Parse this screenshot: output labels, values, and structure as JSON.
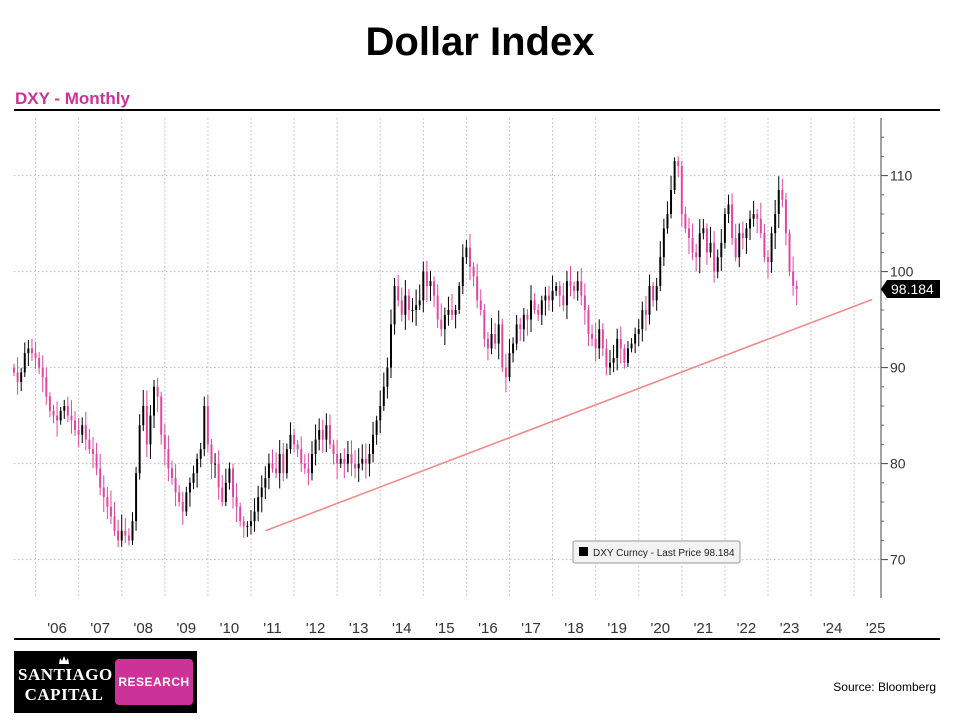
{
  "header": {
    "title": "Dollar Index",
    "subtitle": "DXY - Monthly"
  },
  "footer": {
    "source": "Source:  Bloomberg",
    "logo": {
      "line1": "SANTIAGO",
      "line2": "CAPITAL",
      "badge": "RESEARCH"
    }
  },
  "colors": {
    "accent": "#cc3399",
    "up_candle": "#000000",
    "down_candle": "#e0469f",
    "trendline": "#f08a8a",
    "grid": "#bbbbbb"
  },
  "chart_data": {
    "type": "candlestick",
    "frequency": "monthly",
    "title": "Dollar Index",
    "subtitle": "DXY - Monthly",
    "x_range": [
      2005.5,
      2025.6
    ],
    "ylim": [
      66,
      116
    ],
    "y_ticks": [
      70,
      80,
      90,
      100,
      110
    ],
    "x_ticks": [
      {
        "year": 2006,
        "label": "'06"
      },
      {
        "year": 2007,
        "label": "'07"
      },
      {
        "year": 2008,
        "label": "'08"
      },
      {
        "year": 2009,
        "label": "'09"
      },
      {
        "year": 2010,
        "label": "'10"
      },
      {
        "year": 2011,
        "label": "'11"
      },
      {
        "year": 2012,
        "label": "'12"
      },
      {
        "year": 2013,
        "label": "'13"
      },
      {
        "year": 2014,
        "label": "'14"
      },
      {
        "year": 2015,
        "label": "'15"
      },
      {
        "year": 2016,
        "label": "'16"
      },
      {
        "year": 2017,
        "label": "'17"
      },
      {
        "year": 2018,
        "label": "'18"
      },
      {
        "year": 2019,
        "label": "'19"
      },
      {
        "year": 2020,
        "label": "'20"
      },
      {
        "year": 2021,
        "label": "'21"
      },
      {
        "year": 2022,
        "label": "'22"
      },
      {
        "year": 2023,
        "label": "'23"
      },
      {
        "year": 2024,
        "label": "'24"
      },
      {
        "year": 2025,
        "label": "'25"
      }
    ],
    "grid": "dotted",
    "legend": {
      "position": "bottom-right",
      "text": "DXY Curncy - Last Price 98.184"
    },
    "last_price": {
      "value": 98.184,
      "label": "98.184"
    },
    "trendline": {
      "start": {
        "date": "2011-05",
        "value": 73
      },
      "end": {
        "date": "2025-06",
        "value": 97.1
      }
    },
    "series": [
      {
        "start": "2005-07",
        "close": [
          89.5,
          88.5,
          89.5,
          91.5,
          92,
          91.5,
          91,
          90,
          89,
          87,
          85.5,
          85,
          84.5,
          85.5,
          86,
          85,
          84.5,
          83.5,
          83,
          84,
          82.5,
          81.5,
          81,
          79.5,
          77.5,
          76.5,
          75.5,
          74.5,
          73,
          72,
          73,
          72.5,
          72,
          74,
          79,
          84,
          86,
          82,
          85,
          88,
          87,
          83,
          81.5,
          79.5,
          78.5,
          77,
          76,
          75,
          77,
          78,
          79,
          80.5,
          81.5,
          86,
          82,
          80,
          80,
          77.5,
          76,
          78,
          79.5,
          76.5,
          75.5,
          74,
          73.5,
          73.5,
          74,
          75,
          76.5,
          77.5,
          78.5,
          80,
          79.5,
          79,
          81,
          79,
          81.5,
          83,
          82,
          81.5,
          80,
          79.5,
          79,
          81,
          82.5,
          83.5,
          82.5,
          84,
          82,
          81,
          80,
          80.5,
          80,
          81,
          80,
          79.5,
          80,
          80.5,
          80,
          81,
          83,
          84.5,
          86,
          88,
          90,
          94.5,
          98.5,
          97,
          95.5,
          97.5,
          96,
          96,
          96.5,
          97,
          100,
          98.5,
          99,
          97.5,
          95,
          94,
          95.5,
          96,
          95.5,
          96,
          98.5,
          101.5,
          102.5,
          100.5,
          99.5,
          97,
          96,
          93,
          92,
          93.5,
          92.5,
          94.5,
          90,
          89,
          91.5,
          92.5,
          94.5,
          94,
          95.5,
          95,
          97,
          96,
          95.5,
          97,
          97.5,
          97,
          98,
          98.5,
          97.5,
          96.5,
          99,
          98.5,
          98,
          99,
          97.5,
          96,
          93.5,
          93,
          92,
          94,
          92,
          90,
          90.5,
          91,
          93,
          92,
          90.5,
          92,
          92.5,
          93.5,
          94,
          96,
          95.5,
          98.5,
          97,
          98.5,
          101.5,
          104.5,
          106,
          108.5,
          111.5,
          111,
          106,
          104.5,
          103.5,
          102,
          101.5,
          104,
          104.5,
          102,
          103,
          100,
          101.5,
          103,
          106,
          107,
          103.5,
          101.5,
          104,
          103.5,
          104.5,
          105.5,
          106,
          105.5,
          104,
          101.5,
          101,
          104,
          106,
          108.5,
          107.5,
          104,
          100,
          98.5,
          98.184
        ]
      }
    ]
  }
}
